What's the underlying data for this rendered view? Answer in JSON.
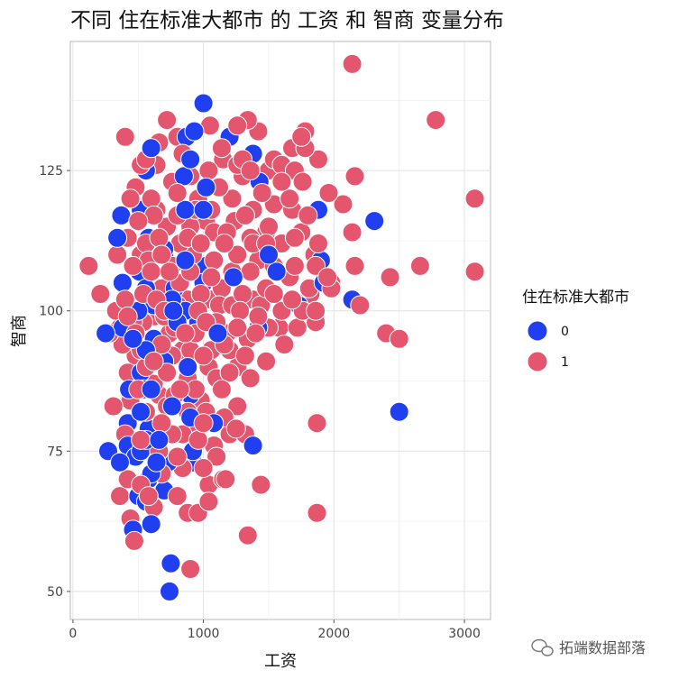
{
  "chart_data": {
    "type": "scatter",
    "title": "不同 住在标准大都市 的 工资 和 智商 变量分布",
    "xlabel": "工资",
    "ylabel": "智商",
    "xlim": [
      -20,
      3200
    ],
    "ylim": [
      45,
      148
    ],
    "x_ticks": [
      "0",
      "1000",
      "2000",
      "3000"
    ],
    "y_ticks": [
      "50",
      "75",
      "100",
      "125"
    ],
    "grid": true,
    "legend": {
      "title": "住在标准大都市",
      "position": "right"
    },
    "series": [
      {
        "name": "0",
        "color": "#1f3ff0",
        "points": [
          [
            1000,
            137
          ],
          [
            870,
            131
          ],
          [
            930,
            132
          ],
          [
            1200,
            131
          ],
          [
            600,
            129
          ],
          [
            900,
            127
          ],
          [
            1380,
            128
          ],
          [
            560,
            125
          ],
          [
            1020,
            122
          ],
          [
            850,
            124
          ],
          [
            1430,
            123
          ],
          [
            370,
            117
          ],
          [
            520,
            118
          ],
          [
            860,
            118
          ],
          [
            1000,
            118
          ],
          [
            1880,
            118
          ],
          [
            2310,
            116
          ],
          [
            340,
            113
          ],
          [
            580,
            113
          ],
          [
            700,
            111
          ],
          [
            860,
            109
          ],
          [
            1500,
            110
          ],
          [
            1900,
            109
          ],
          [
            700,
            110
          ],
          [
            1020,
            108
          ],
          [
            510,
            107
          ],
          [
            1560,
            107
          ],
          [
            1230,
            106
          ],
          [
            380,
            105
          ],
          [
            560,
            104
          ],
          [
            780,
            104
          ],
          [
            1000,
            105
          ],
          [
            1920,
            105
          ],
          [
            760,
            102
          ],
          [
            620,
            101
          ],
          [
            1730,
            101
          ],
          [
            500,
            100
          ],
          [
            770,
            100
          ],
          [
            860,
            100
          ],
          [
            250,
            96
          ],
          [
            380,
            97
          ],
          [
            800,
            98
          ],
          [
            960,
            98
          ],
          [
            1110,
            96
          ],
          [
            1420,
            97
          ],
          [
            460,
            95
          ],
          [
            620,
            95
          ],
          [
            560,
            93
          ],
          [
            880,
            90
          ],
          [
            700,
            91
          ],
          [
            520,
            89
          ],
          [
            540,
            86
          ],
          [
            600,
            86
          ],
          [
            430,
            86
          ],
          [
            900,
            85
          ],
          [
            520,
            82
          ],
          [
            760,
            83
          ],
          [
            900,
            81
          ],
          [
            1080,
            80
          ],
          [
            420,
            80
          ],
          [
            580,
            79
          ],
          [
            560,
            77
          ],
          [
            660,
            77
          ],
          [
            420,
            76
          ],
          [
            270,
            75
          ],
          [
            520,
            75
          ],
          [
            920,
            75
          ],
          [
            1380,
            76
          ],
          [
            360,
            73
          ],
          [
            480,
            74
          ],
          [
            640,
            73
          ],
          [
            730,
            73
          ],
          [
            920,
            73
          ],
          [
            600,
            71
          ],
          [
            580,
            70
          ],
          [
            700,
            68
          ],
          [
            500,
            67
          ],
          [
            560,
            66
          ],
          [
            600,
            62
          ],
          [
            460,
            61
          ],
          [
            750,
            55
          ],
          [
            740,
            50
          ],
          [
            2500,
            82
          ],
          [
            2140,
            102
          ]
        ]
      },
      {
        "name": "1",
        "color": "#e4566e",
        "points": [
          [
            2140,
            144
          ],
          [
            2780,
            134
          ],
          [
            3080,
            120
          ],
          [
            3080,
            107
          ],
          [
            2660,
            108
          ],
          [
            2430,
            106
          ],
          [
            2160,
            124
          ],
          [
            2070,
            119
          ],
          [
            2140,
            114
          ],
          [
            2500,
            95
          ],
          [
            2400,
            96
          ],
          [
            2200,
            101
          ],
          [
            2160,
            108
          ],
          [
            1980,
            105
          ],
          [
            1870,
            80
          ],
          [
            1870,
            64
          ],
          [
            1340,
            60
          ],
          [
            900,
            54
          ],
          [
            470,
            59
          ],
          [
            1440,
            69
          ],
          [
            1170,
            70
          ],
          [
            1040,
            69
          ],
          [
            1040,
            66
          ],
          [
            880,
            64
          ],
          [
            580,
            67
          ],
          [
            360,
            67
          ],
          [
            310,
            83
          ],
          [
            120,
            108
          ],
          [
            210,
            103
          ],
          [
            280,
            96
          ],
          [
            400,
            131
          ],
          [
            720,
            134
          ],
          [
            1050,
            133
          ],
          [
            1340,
            134
          ],
          [
            1420,
            132
          ],
          [
            1780,
            132
          ],
          [
            1750,
            131
          ],
          [
            1260,
            133
          ],
          [
            1140,
            129
          ],
          [
            840,
            128
          ],
          [
            640,
            126
          ],
          [
            520,
            126
          ],
          [
            480,
            122
          ],
          [
            600,
            120
          ],
          [
            800,
            121
          ],
          [
            960,
            120
          ],
          [
            1120,
            122
          ],
          [
            1300,
            124
          ],
          [
            1450,
            121
          ],
          [
            1600,
            123
          ],
          [
            1700,
            125
          ],
          [
            1880,
            127
          ],
          [
            1960,
            121
          ],
          [
            1800,
            117
          ],
          [
            1680,
            118
          ],
          [
            1500,
            115
          ],
          [
            1320,
            117
          ],
          [
            1180,
            114
          ],
          [
            1020,
            116
          ],
          [
            880,
            113
          ],
          [
            720,
            115
          ],
          [
            560,
            112
          ],
          [
            420,
            113
          ],
          [
            340,
            110
          ],
          [
            460,
            108
          ],
          [
            600,
            107
          ],
          [
            760,
            108
          ],
          [
            920,
            110
          ],
          [
            1080,
            109
          ],
          [
            1260,
            110
          ],
          [
            1420,
            109
          ],
          [
            1600,
            112
          ],
          [
            1750,
            114
          ],
          [
            1850,
            110
          ],
          [
            1950,
            106
          ],
          [
            1820,
            103
          ],
          [
            1660,
            106
          ],
          [
            1480,
            104
          ],
          [
            1300,
            103
          ],
          [
            1140,
            104
          ],
          [
            980,
            103
          ],
          [
            820,
            105
          ],
          [
            680,
            104
          ],
          [
            540,
            103
          ],
          [
            400,
            102
          ],
          [
            330,
            100
          ],
          [
            460,
            98
          ],
          [
            620,
            99
          ],
          [
            780,
            97
          ],
          [
            940,
            96
          ],
          [
            1100,
            98
          ],
          [
            1260,
            97
          ],
          [
            1420,
            99
          ],
          [
            1580,
            97
          ],
          [
            1720,
            97
          ],
          [
            1860,
            98
          ],
          [
            1760,
            100
          ],
          [
            1600,
            100
          ],
          [
            1440,
            101
          ],
          [
            1280,
            100
          ],
          [
            1120,
            101
          ],
          [
            960,
            100
          ],
          [
            800,
            101
          ],
          [
            640,
            102
          ],
          [
            480,
            96
          ],
          [
            380,
            94
          ],
          [
            520,
            93
          ],
          [
            680,
            94
          ],
          [
            840,
            93
          ],
          [
            1000,
            92
          ],
          [
            1160,
            94
          ],
          [
            1320,
            92
          ],
          [
            1480,
            91
          ],
          [
            1360,
            88
          ],
          [
            1200,
            89
          ],
          [
            1040,
            90
          ],
          [
            880,
            88
          ],
          [
            720,
            89
          ],
          [
            560,
            90
          ],
          [
            420,
            89
          ],
          [
            500,
            86
          ],
          [
            660,
            85
          ],
          [
            820,
            86
          ],
          [
            980,
            84
          ],
          [
            1140,
            86
          ],
          [
            1260,
            83
          ],
          [
            1160,
            81
          ],
          [
            1000,
            80
          ],
          [
            840,
            78
          ],
          [
            680,
            80
          ],
          [
            560,
            82
          ],
          [
            440,
            84
          ],
          [
            400,
            78
          ],
          [
            520,
            77
          ],
          [
            660,
            75
          ],
          [
            800,
            74
          ],
          [
            960,
            77
          ],
          [
            1100,
            74
          ],
          [
            1250,
            79
          ],
          [
            1320,
            78
          ],
          [
            1150,
            70
          ],
          [
            1000,
            72
          ],
          [
            840,
            72
          ],
          [
            680,
            71
          ],
          [
            520,
            69
          ],
          [
            420,
            70
          ],
          [
            800,
            67
          ],
          [
            960,
            64
          ],
          [
            440,
            63
          ],
          [
            620,
            65
          ],
          [
            680,
            110
          ],
          [
            740,
            96
          ],
          [
            900,
            115
          ],
          [
            1060,
            118
          ],
          [
            1220,
            120
          ],
          [
            1380,
            118
          ],
          [
            1540,
            119
          ],
          [
            1660,
            120
          ],
          [
            1760,
            123
          ],
          [
            1880,
            112
          ],
          [
            1040,
            125
          ],
          [
            900,
            124
          ],
          [
            760,
            123
          ],
          [
            620,
            117
          ],
          [
            500,
            116
          ],
          [
            440,
            120
          ],
          [
            1150,
            127
          ],
          [
            1300,
            127
          ],
          [
            1540,
            127
          ],
          [
            1640,
            125
          ],
          [
            1700,
            113
          ],
          [
            1380,
            112
          ],
          [
            1220,
            107
          ],
          [
            1060,
            106
          ],
          [
            900,
            107
          ],
          [
            740,
            107
          ],
          [
            580,
            109
          ],
          [
            1160,
            112
          ],
          [
            980,
            112
          ],
          [
            820,
            112
          ],
          [
            640,
            118
          ],
          [
            1480,
            114
          ],
          [
            1360,
            107
          ],
          [
            1540,
            108
          ],
          [
            1700,
            108
          ],
          [
            1810,
            104
          ],
          [
            1620,
            94
          ],
          [
            1500,
            97
          ],
          [
            1340,
            95
          ],
          [
            1180,
            96
          ],
          [
            1020,
            98
          ],
          [
            860,
            96
          ],
          [
            700,
            99
          ],
          [
            540,
            98
          ],
          [
            420,
            99
          ],
          [
            360,
            97
          ],
          [
            1260,
            90
          ],
          [
            1100,
            88
          ],
          [
            940,
            86
          ],
          [
            780,
            85
          ],
          [
            620,
            87
          ],
          [
            1020,
            82
          ],
          [
            880,
            82
          ],
          [
            720,
            83
          ],
          [
            600,
            80
          ],
          [
            1200,
            78
          ],
          [
            1080,
            76
          ],
          [
            920,
            79
          ],
          [
            760,
            78
          ],
          [
            1480,
            112
          ],
          [
            1360,
            113
          ],
          [
            1240,
            116
          ],
          [
            1080,
            114
          ],
          [
            940,
            118
          ],
          [
            800,
            117
          ],
          [
            660,
            113
          ],
          [
            520,
            110
          ],
          [
            1860,
            108
          ],
          [
            1980,
            104
          ],
          [
            1600,
            126
          ],
          [
            1500,
            125
          ],
          [
            1360,
            125
          ],
          [
            1260,
            126
          ],
          [
            1780,
            129
          ],
          [
            1680,
            129
          ],
          [
            800,
            131
          ],
          [
            660,
            130
          ],
          [
            560,
            127
          ],
          [
            1860,
            100
          ],
          [
            1680,
            102
          ],
          [
            1540,
            103
          ],
          [
            1380,
            102
          ],
          [
            1220,
            101
          ],
          [
            1060,
            102
          ],
          [
            880,
            102
          ],
          [
            700,
            100
          ],
          [
            900,
            93
          ],
          [
            760,
            92
          ],
          [
            620,
            91
          ],
          [
            480,
            92
          ],
          [
            1200,
            93
          ],
          [
            1060,
            93
          ],
          [
            1400,
            96
          ]
        ]
      }
    ]
  },
  "watermark": "拓端数据部落"
}
